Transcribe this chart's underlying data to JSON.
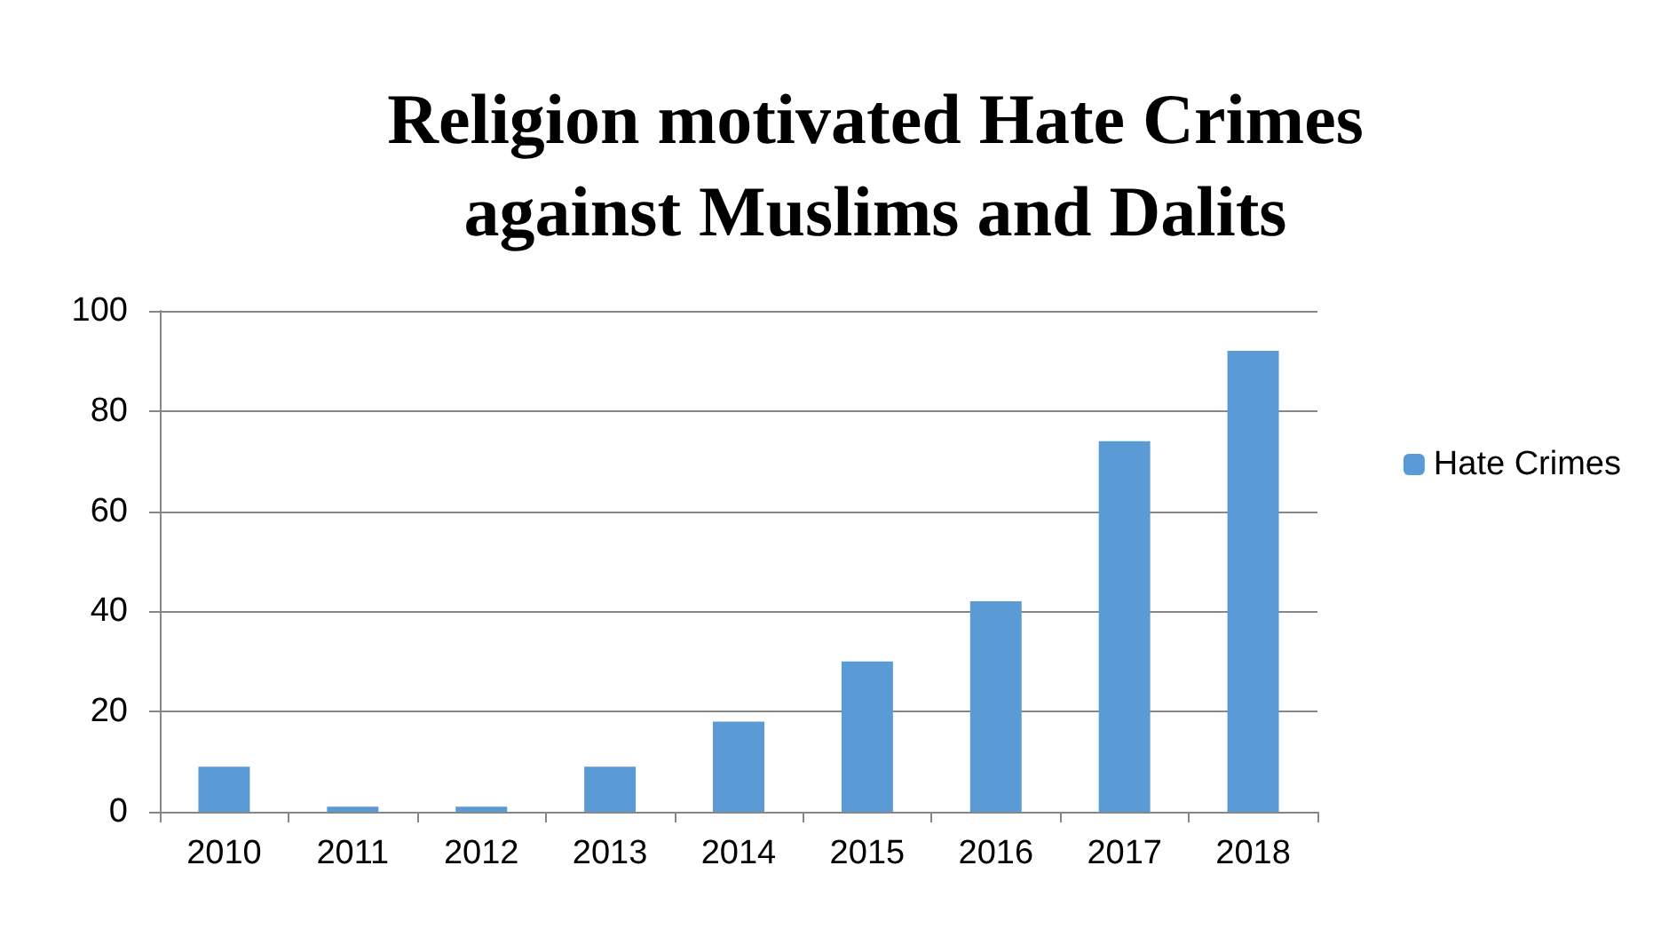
{
  "chart_data": {
    "type": "bar",
    "title": "Religion motivated Hate Crimes\nagainst Muslims and Dalits",
    "categories": [
      "2010",
      "2011",
      "2012",
      "2013",
      "2014",
      "2015",
      "2016",
      "2017",
      "2018"
    ],
    "series": [
      {
        "name": "Hate Crimes",
        "color": "#5b9bd5",
        "values": [
          9,
          1,
          1,
          9,
          18,
          30,
          42,
          74,
          92
        ]
      }
    ],
    "ylim": [
      0,
      100
    ],
    "yticks": [
      0,
      20,
      40,
      60,
      80,
      100
    ],
    "grid": "y",
    "legend": "right"
  }
}
